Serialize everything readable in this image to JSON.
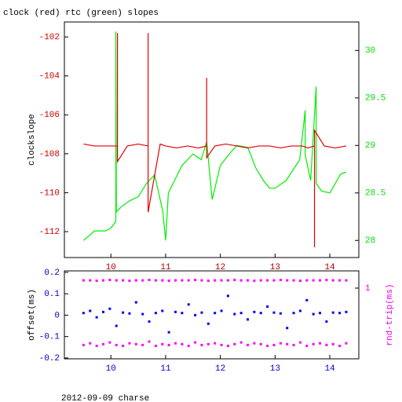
{
  "chart_data": [
    {
      "type": "line",
      "title": "clock (red) rtc (green) slopes",
      "ylabel": "clockslope",
      "xlim": [
        9.15,
        14.53
      ],
      "xticks": [
        10,
        11,
        12,
        13,
        14
      ],
      "ylim": [
        -113.33,
        -101.23
      ],
      "yticks": [
        -112,
        -110,
        -108,
        -106,
        -104,
        -102
      ],
      "y2lim": [
        27.82,
        30.3
      ],
      "y2ticks": [
        28,
        28.5,
        29,
        29.5,
        30
      ],
      "axis_colors": {
        "x": "#b00000",
        "y": "#cc0000",
        "y2": "#00dd00"
      },
      "series": [
        {
          "color": "#00ee00",
          "axis": "y2",
          "x": [
            9.5,
            9.7,
            9.9,
            10.0,
            10.09,
            10.09,
            10.1,
            10.2,
            10.35,
            10.5,
            10.65,
            10.8,
            10.95,
            11.0,
            11.05,
            11.3,
            11.5,
            11.65,
            11.75,
            11.85,
            12.0,
            12.15,
            12.3,
            12.5,
            12.65,
            12.8,
            12.9,
            13.0,
            13.2,
            13.45,
            13.55,
            13.55,
            13.65,
            13.75,
            13.75,
            13.85,
            14.0,
            14.1,
            14.2,
            14.3
          ],
          "values": [
            28.0,
            28.1,
            28.1,
            28.13,
            28.2,
            30.2,
            28.3,
            28.36,
            28.42,
            28.46,
            28.6,
            28.69,
            28.3,
            28.0,
            28.5,
            28.79,
            28.91,
            28.85,
            29.04,
            28.43,
            28.79,
            28.9,
            29.0,
            28.98,
            28.76,
            28.62,
            28.55,
            28.55,
            28.63,
            28.85,
            29.37,
            28.9,
            28.63,
            29.62,
            28.6,
            28.52,
            28.5,
            28.6,
            28.7,
            28.72
          ]
        },
        {
          "color": "#dd0000",
          "axis": "y",
          "x": [
            9.5,
            9.7,
            9.9,
            10.0,
            10.12,
            10.12,
            10.12,
            10.3,
            10.5,
            10.68,
            10.68,
            10.68,
            10.9,
            11.0,
            11.2,
            11.4,
            11.6,
            11.75,
            11.75,
            11.75,
            11.9,
            12.1,
            12.3,
            12.5,
            12.7,
            12.9,
            13.1,
            13.3,
            13.5,
            13.6,
            13.72,
            13.72,
            13.72,
            13.9,
            14.1,
            14.3
          ],
          "values": [
            -107.5,
            -107.6,
            -107.6,
            -107.6,
            -107.6,
            -101.8,
            -108.4,
            -107.6,
            -107.5,
            -107.6,
            -101.8,
            -111.0,
            -107.5,
            -107.6,
            -107.7,
            -107.6,
            -107.7,
            -107.6,
            -104.1,
            -108.2,
            -107.6,
            -107.5,
            -107.6,
            -107.7,
            -107.6,
            -107.6,
            -107.7,
            -107.6,
            -107.6,
            -107.7,
            -107.6,
            -112.8,
            -106.8,
            -107.6,
            -107.7,
            -107.6
          ]
        }
      ]
    },
    {
      "type": "scatter",
      "ylabel": "offset(ms)",
      "y2label": "rnd-trip(ms)",
      "xlim": [
        9.15,
        14.53
      ],
      "xticks": [
        10,
        11,
        12,
        13,
        14
      ],
      "ylim": [
        -0.204,
        0.207
      ],
      "yticks": [
        -0.2,
        -0.1,
        0,
        0.1,
        0.2
      ],
      "y2lim": [
        0.18,
        1.2
      ],
      "y2ticks": [
        1
      ],
      "axis_colors": {
        "x": "#0000cc",
        "y": "#0000cc",
        "y2": "#ee00ee"
      },
      "x": [
        9.5,
        9.62,
        9.74,
        9.86,
        9.98,
        10.1,
        10.22,
        10.34,
        10.46,
        10.58,
        10.7,
        10.82,
        10.94,
        11.06,
        11.18,
        11.3,
        11.42,
        11.54,
        11.66,
        11.78,
        11.9,
        12.02,
        12.14,
        12.26,
        12.38,
        12.5,
        12.62,
        12.74,
        12.86,
        12.98,
        13.1,
        13.22,
        13.34,
        13.46,
        13.58,
        13.7,
        13.82,
        13.94,
        14.06,
        14.18,
        14.3
      ],
      "series": [
        {
          "color": "#0000ff",
          "axis": "y",
          "values": [
            0.01,
            0.02,
            -0.01,
            0.015,
            0.03,
            -0.05,
            0.012,
            0.008,
            0.06,
            0.005,
            -0.03,
            0.01,
            0.02,
            -0.08,
            0.015,
            0.01,
            0.05,
            0.0,
            0.012,
            -0.04,
            0.01,
            0.02,
            0.09,
            0.005,
            0.01,
            -0.02,
            0.015,
            0.01,
            0.04,
            0.012,
            0.008,
            -0.06,
            0.01,
            0.02,
            0.07,
            0.005,
            0.01,
            -0.03,
            0.012,
            0.01,
            0.015
          ]
        },
        {
          "color": "#ff00ff",
          "axis": "y2",
          "values": [
            1.09,
            1.09,
            1.085,
            1.09,
            1.095,
            1.09,
            1.09,
            1.085,
            1.09,
            1.09,
            1.095,
            1.09,
            1.09,
            1.085,
            1.09,
            1.09,
            1.09,
            1.095,
            1.09,
            1.085,
            1.09,
            1.09,
            1.09,
            1.095,
            1.09,
            1.09,
            1.085,
            1.09,
            1.09,
            1.09,
            1.095,
            1.09,
            1.09,
            1.085,
            1.09,
            1.09,
            1.09,
            1.095,
            1.09,
            1.09,
            1.09
          ]
        },
        {
          "color": "#ff00ff",
          "axis": "y2",
          "values": [
            0.34,
            0.36,
            0.33,
            0.35,
            0.37,
            0.34,
            0.33,
            0.36,
            0.35,
            0.34,
            0.38,
            0.33,
            0.35,
            0.34,
            0.36,
            0.35,
            0.33,
            0.37,
            0.34,
            0.35,
            0.36,
            0.34,
            0.33,
            0.35,
            0.37,
            0.34,
            0.36,
            0.35,
            0.33,
            0.34,
            0.36,
            0.35,
            0.34,
            0.37,
            0.33,
            0.35,
            0.36,
            0.34,
            0.35,
            0.33,
            0.36
          ]
        }
      ]
    }
  ],
  "footer": "2012-09-09 charse"
}
